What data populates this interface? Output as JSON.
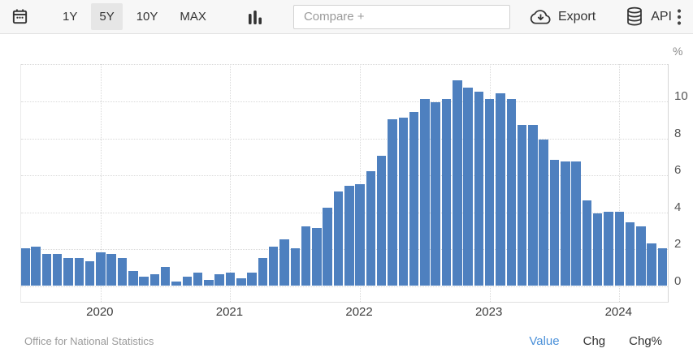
{
  "toolbar": {
    "ranges": [
      {
        "label": "1Y",
        "selected": false
      },
      {
        "label": "5Y",
        "selected": true
      },
      {
        "label": "10Y",
        "selected": false
      },
      {
        "label": "MAX",
        "selected": false
      }
    ],
    "compare_placeholder": "Compare +",
    "export_label": "Export",
    "api_label": "API"
  },
  "chart_data": {
    "type": "bar",
    "unit": "%",
    "series_color": "#4e80bf",
    "x": [
      "2019-06",
      "2019-07",
      "2019-08",
      "2019-09",
      "2019-10",
      "2019-11",
      "2019-12",
      "2020-01",
      "2020-02",
      "2020-03",
      "2020-04",
      "2020-05",
      "2020-06",
      "2020-07",
      "2020-08",
      "2020-09",
      "2020-10",
      "2020-11",
      "2020-12",
      "2021-01",
      "2021-02",
      "2021-03",
      "2021-04",
      "2021-05",
      "2021-06",
      "2021-07",
      "2021-08",
      "2021-09",
      "2021-10",
      "2021-11",
      "2021-12",
      "2022-01",
      "2022-02",
      "2022-03",
      "2022-04",
      "2022-05",
      "2022-06",
      "2022-07",
      "2022-08",
      "2022-09",
      "2022-10",
      "2022-11",
      "2022-12",
      "2023-01",
      "2023-02",
      "2023-03",
      "2023-04",
      "2023-05",
      "2023-06",
      "2023-07",
      "2023-08",
      "2023-09",
      "2023-10",
      "2023-11",
      "2023-12",
      "2024-01",
      "2024-02",
      "2024-03",
      "2024-04",
      "2024-05"
    ],
    "values": [
      2.0,
      2.1,
      1.7,
      1.7,
      1.5,
      1.5,
      1.3,
      1.8,
      1.7,
      1.5,
      0.8,
      0.5,
      0.6,
      1.0,
      0.2,
      0.5,
      0.7,
      0.3,
      0.6,
      0.7,
      0.4,
      0.7,
      1.5,
      2.1,
      2.5,
      2.0,
      3.2,
      3.1,
      4.2,
      5.1,
      5.4,
      5.5,
      6.2,
      7.0,
      9.0,
      9.1,
      9.4,
      10.1,
      9.9,
      10.1,
      11.1,
      10.7,
      10.5,
      10.1,
      10.4,
      10.1,
      8.7,
      8.7,
      7.9,
      6.8,
      6.7,
      6.7,
      4.6,
      3.9,
      4.0,
      4.0,
      3.4,
      3.2,
      2.3,
      2.0
    ],
    "y_tick_labels": [
      0,
      2,
      4,
      6,
      8,
      10
    ],
    "y_gridlines": [
      0,
      2,
      4,
      6,
      8,
      10,
      12
    ],
    "ylim": [
      -0.9,
      12.1
    ],
    "x_ticks": [
      {
        "label": "2020",
        "month_index": 7
      },
      {
        "label": "2021",
        "month_index": 19
      },
      {
        "label": "2022",
        "month_index": 31
      },
      {
        "label": "2023",
        "month_index": 43
      },
      {
        "label": "2024",
        "month_index": 55
      }
    ],
    "grid_style": "dotted",
    "legend": "none"
  },
  "footer": {
    "source": "Office for National Statistics",
    "tabs": [
      {
        "label": "Value",
        "active": true
      },
      {
        "label": "Chg",
        "active": false
      },
      {
        "label": "Chg%",
        "active": false
      }
    ]
  },
  "colors": {
    "bar": "#4e80bf",
    "active_tab": "#4a90d9",
    "range_selected_bg": "#e6e6e6",
    "gridline": "#d9d9d9"
  }
}
